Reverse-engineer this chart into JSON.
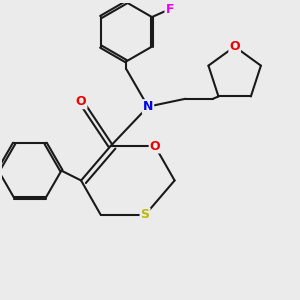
{
  "background_color": "#ebebeb",
  "bond_color": "#1a1a1a",
  "atom_colors": {
    "F": "#ee00ee",
    "N": "#0000ee",
    "O": "#ee0000",
    "S": "#bbbb00",
    "C": "#1a1a1a"
  },
  "figsize": [
    3.0,
    3.0
  ],
  "dpi": 100
}
